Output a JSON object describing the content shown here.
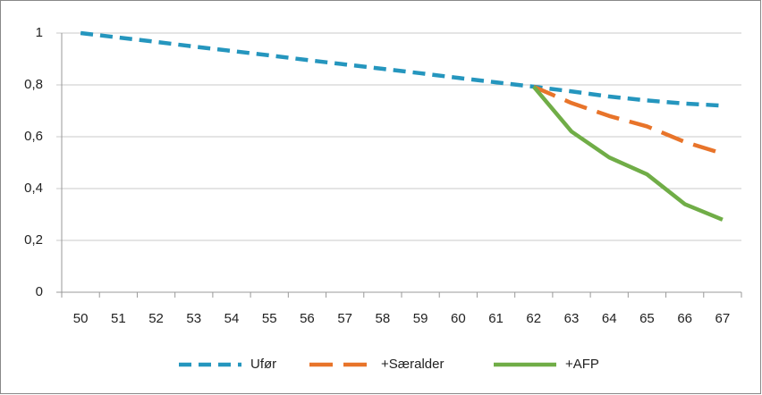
{
  "chart_data": {
    "type": "line",
    "categories": [
      "50",
      "51",
      "52",
      "53",
      "54",
      "55",
      "56",
      "57",
      "58",
      "59",
      "60",
      "61",
      "62",
      "63",
      "64",
      "65",
      "66",
      "67"
    ],
    "series": [
      {
        "name": "Ufør",
        "color": "#2596be",
        "dash": "dash",
        "values": [
          1,
          0.983,
          0.966,
          0.948,
          0.931,
          0.914,
          0.896,
          0.879,
          0.862,
          0.845,
          0.827,
          0.81,
          0.793,
          0.775,
          0.755,
          0.74,
          0.728,
          0.72
        ]
      },
      {
        "name": "+Særalder",
        "color": "#e8742a",
        "dash": "longdash",
        "values": [
          null,
          null,
          null,
          null,
          null,
          null,
          null,
          null,
          null,
          null,
          null,
          null,
          0.793,
          0.73,
          0.68,
          0.64,
          0.58,
          0.535
        ]
      },
      {
        "name": "+AFP",
        "color": "#70ad47",
        "dash": "solid",
        "values": [
          null,
          null,
          null,
          null,
          null,
          null,
          null,
          null,
          null,
          null,
          null,
          null,
          0.793,
          0.62,
          0.52,
          0.455,
          0.34,
          0.28
        ]
      }
    ],
    "ylim": [
      0,
      1
    ],
    "yticks": [
      0,
      {
        "value": 0.2,
        "label": "0,2"
      },
      {
        "value": 0.4,
        "label": "0,4"
      },
      {
        "value": 0.6,
        "label": "0,6"
      },
      {
        "value": 0.8,
        "label": "0,8"
      },
      1
    ],
    "grid": true,
    "legend": "bottom"
  }
}
